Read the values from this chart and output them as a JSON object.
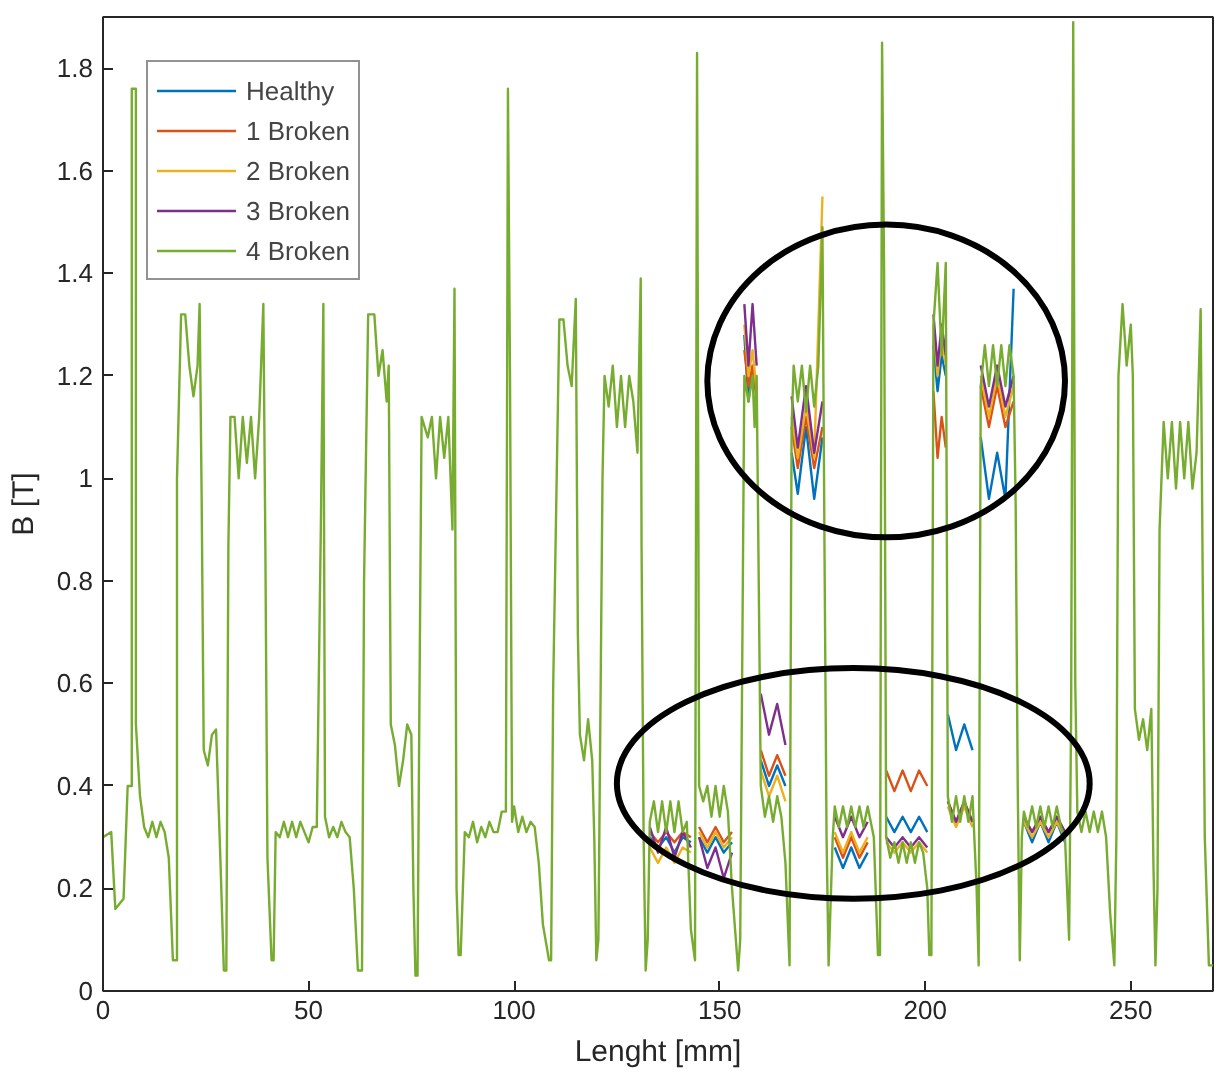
{
  "chart_data": {
    "type": "line",
    "xlabel": "Lenght [mm]",
    "ylabel": "B [T]",
    "xlim": [
      0,
      270
    ],
    "ylim": [
      0,
      1.9
    ],
    "xticks": [
      0,
      50,
      100,
      150,
      200,
      250
    ],
    "yticks": [
      0,
      {
        "value": 0.2,
        "label": "0.2"
      },
      {
        "value": 0.4,
        "label": "0.4"
      },
      {
        "value": 0.6,
        "label": "0.6"
      },
      {
        "value": 0.8,
        "label": "0.8"
      },
      1,
      {
        "value": 1.2,
        "label": "1.2"
      },
      {
        "value": 1.4,
        "label": "1.4"
      },
      {
        "value": 1.6,
        "label": "1.6"
      },
      {
        "value": 1.8,
        "label": "1.8"
      }
    ],
    "grid": false,
    "legend": "top left",
    "series": [
      {
        "name": "Healthy",
        "color": "#0072bd",
        "x": [
          133,
          135,
          137,
          139,
          141,
          143,
          144,
          145,
          147,
          149,
          151,
          153,
          154.5,
          156,
          157,
          158,
          159,
          159.5,
          160,
          162,
          164,
          166,
          166.8,
          167.5,
          169,
          171,
          173,
          175,
          176.5,
          178,
          180,
          182,
          184,
          186,
          188,
          190.5,
          192.5,
          194.5,
          196.5,
          198.5,
          200.5,
          201.2,
          202,
          203,
          204,
          205,
          205.2,
          205.5,
          207.5,
          209.5,
          211.5,
          212.8,
          213.5,
          215.5,
          217.5,
          219.5,
          221.5,
          223,
          224,
          226,
          228,
          230,
          232,
          234
        ],
        "values": [
          0.3,
          0.28,
          0.3,
          0.27,
          0.3,
          0.29,
          null,
          0.3,
          0.27,
          0.3,
          0.27,
          0.29,
          null,
          1.28,
          1.15,
          1.22,
          null,
          null,
          0.45,
          0.4,
          0.44,
          0.4,
          null,
          1.05,
          0.97,
          1.1,
          0.96,
          1.08,
          null,
          0.28,
          0.24,
          0.28,
          0.24,
          0.27,
          null,
          0.34,
          0.31,
          0.34,
          0.31,
          0.34,
          0.31,
          null,
          1.26,
          1.17,
          1.24,
          1.2,
          null,
          0.54,
          0.47,
          0.52,
          0.47,
          null,
          1.08,
          0.96,
          1.05,
          0.96,
          1.37,
          null,
          0.33,
          0.29,
          0.33,
          0.29,
          0.33,
          0.29
        ]
      },
      {
        "name": "1 Broken",
        "color": "#d95319",
        "x": [
          133,
          135,
          137,
          139,
          141,
          143,
          144,
          145,
          147,
          149,
          151,
          153,
          154.5,
          156,
          157,
          158,
          159,
          159.5,
          160,
          162,
          164,
          166,
          166.8,
          167.5,
          169,
          171,
          173,
          175,
          176.5,
          178,
          180,
          182,
          184,
          186,
          188,
          190.5,
          192.5,
          194.5,
          196.5,
          198.5,
          200.5,
          201.2,
          202,
          203,
          204,
          205,
          205.2,
          205.5,
          207.5,
          209.5,
          211.5,
          212.8,
          213.5,
          215.5,
          217.5,
          219.5,
          221.5,
          223,
          224,
          226,
          228,
          230,
          232,
          234
        ],
        "values": [
          0.31,
          0.29,
          0.31,
          0.29,
          0.31,
          0.3,
          null,
          0.32,
          0.29,
          0.32,
          0.29,
          0.31,
          null,
          1.25,
          1.18,
          1.22,
          1.15,
          null,
          0.47,
          0.42,
          0.46,
          0.42,
          null,
          1.1,
          1.02,
          1.12,
          1.02,
          1.1,
          null,
          0.3,
          0.26,
          0.3,
          0.26,
          0.29,
          null,
          0.43,
          0.39,
          0.43,
          0.39,
          0.43,
          0.4,
          null,
          1.17,
          1.04,
          1.12,
          1.06,
          null,
          0.37,
          0.33,
          0.37,
          0.33,
          null,
          1.18,
          1.1,
          1.18,
          1.1,
          1.15,
          null,
          0.34,
          0.31,
          0.34,
          0.31,
          0.34,
          0.31
        ]
      },
      {
        "name": "2 Broken",
        "color": "#edb120",
        "x": [
          133,
          135,
          137,
          139,
          141,
          143,
          144,
          145,
          147,
          149,
          151,
          153,
          154.5,
          156,
          157,
          158,
          159,
          159.5,
          160,
          162,
          164,
          166,
          166.8,
          167.5,
          169,
          171,
          173,
          175,
          176.5,
          178,
          180,
          182,
          184,
          186,
          188,
          190.5,
          192.5,
          194.5,
          196.5,
          198.5,
          200.5,
          201.2,
          202,
          203,
          204,
          205,
          205.2,
          205.5,
          207.5,
          209.5,
          211.5,
          212.8,
          213.5,
          215.5,
          217.5,
          219.5,
          221.5,
          223,
          224,
          226,
          228,
          230,
          232,
          234
        ],
        "values": [
          0.28,
          0.25,
          0.28,
          0.25,
          0.28,
          0.27,
          null,
          0.31,
          0.28,
          0.31,
          0.28,
          0.3,
          null,
          1.3,
          1.2,
          1.25,
          1.17,
          null,
          0.43,
          0.38,
          0.42,
          0.37,
          null,
          1.12,
          1.04,
          1.14,
          1.04,
          1.55,
          null,
          0.31,
          0.27,
          0.31,
          0.27,
          0.3,
          null,
          0.29,
          0.27,
          0.29,
          0.27,
          0.29,
          0.27,
          null,
          1.3,
          1.2,
          1.28,
          1.22,
          null,
          0.36,
          0.32,
          0.36,
          0.32,
          null,
          1.2,
          1.12,
          1.2,
          1.12,
          1.18,
          null,
          0.33,
          0.3,
          0.33,
          0.3,
          0.33,
          0.3
        ]
      },
      {
        "name": "3 Broken",
        "color": "#7e2f8e",
        "x": [
          133,
          135,
          137,
          139,
          141,
          143,
          144,
          145,
          147,
          149,
          151,
          153,
          154.5,
          156,
          157,
          158,
          159,
          159.5,
          160,
          162,
          164,
          166,
          166.8,
          167.5,
          169,
          171,
          173,
          175,
          176.5,
          178,
          180,
          182,
          184,
          186,
          188,
          190.5,
          192.5,
          194.5,
          196.5,
          198.5,
          200.5,
          201.2,
          202,
          203,
          204,
          205,
          205.2,
          205.5,
          207.5,
          209.5,
          211.5,
          212.8,
          213.5,
          215.5,
          217.5,
          219.5,
          221.5,
          223,
          224,
          226,
          228,
          230,
          232,
          234
        ],
        "values": [
          0.32,
          0.27,
          0.32,
          0.26,
          0.31,
          0.28,
          null,
          0.3,
          0.24,
          0.28,
          0.22,
          0.27,
          null,
          1.34,
          1.22,
          1.34,
          1.22,
          null,
          0.58,
          0.5,
          0.56,
          0.48,
          null,
          1.16,
          1.06,
          1.18,
          1.05,
          1.15,
          null,
          0.34,
          0.3,
          0.34,
          0.3,
          0.33,
          null,
          0.3,
          0.28,
          0.3,
          0.28,
          0.3,
          0.28,
          null,
          1.32,
          1.22,
          1.3,
          1.24,
          null,
          0.37,
          0.33,
          0.37,
          0.33,
          null,
          1.22,
          1.14,
          1.22,
          1.14,
          1.2,
          null,
          0.34,
          0.31,
          0.34,
          0.31,
          0.34,
          0.31
        ]
      },
      {
        "name": "4 Broken",
        "color": "#77ac30",
        "x": [
          0,
          2,
          3,
          5,
          6,
          7,
          7,
          8,
          8,
          9,
          10,
          11,
          12,
          13,
          14,
          15,
          16,
          17,
          18,
          18,
          19,
          20,
          21,
          22,
          23,
          23.5,
          24,
          24.5,
          25.5,
          26.5,
          27.5,
          28.5,
          29.4,
          30,
          30.5,
          31,
          32,
          33,
          34,
          35,
          36,
          37,
          38,
          39,
          39.5,
          40,
          41,
          41.5,
          42,
          43,
          44,
          45,
          46,
          47,
          48,
          49,
          50,
          51,
          52,
          53,
          53.6,
          54,
          55,
          56,
          57,
          58,
          59,
          60,
          61,
          62,
          63,
          63.5,
          64.5,
          66,
          67,
          68,
          69,
          69.5,
          70,
          71,
          72,
          73,
          74,
          75,
          75.5,
          76,
          76.5,
          77,
          77.5,
          79,
          80,
          81,
          82,
          83,
          84,
          85,
          85.5,
          86,
          86.5,
          87,
          88,
          89,
          90,
          91,
          92,
          93,
          94,
          95,
          96,
          97,
          98,
          98.5,
          99,
          99.5,
          100,
          101,
          102,
          103,
          104,
          105,
          106,
          107,
          108.5,
          109,
          109.5,
          111,
          112,
          113,
          114,
          115,
          115.5,
          116,
          117,
          118,
          119,
          119.5,
          120,
          120.5,
          121.5,
          122,
          123,
          124,
          125,
          126,
          127,
          128,
          129,
          130,
          130.8,
          131,
          131.5,
          132,
          132.5,
          133,
          134,
          135,
          136,
          137,
          138,
          139,
          140,
          141,
          142,
          143,
          144,
          144.5,
          145,
          146,
          147,
          148,
          149,
          150,
          151,
          152,
          153,
          154.5,
          155,
          156,
          157,
          158,
          158.5,
          159,
          160,
          161,
          162,
          163,
          164,
          165,
          166,
          167,
          167.5,
          168,
          169,
          170,
          171,
          172,
          173,
          174,
          175,
          175.5,
          176,
          176.5,
          177.5,
          178,
          179,
          180,
          181,
          182,
          183,
          184,
          185,
          186,
          187.5,
          188.5,
          189,
          189.5,
          190,
          190.5,
          191.5,
          192.5,
          193.5,
          194.5,
          195.5,
          196.5,
          197.5,
          198.5,
          199.5,
          200.5,
          201,
          201.5,
          202,
          203,
          204,
          205,
          205.5,
          206.5,
          207.5,
          208.5,
          209.5,
          210.5,
          211.5,
          212.5,
          213,
          213.5,
          214.5,
          215.5,
          216.5,
          217.5,
          218.5,
          219.5,
          220.5,
          221.5,
          222,
          222.5,
          223,
          223.5,
          224,
          225,
          226,
          227,
          228,
          229,
          230,
          231,
          232,
          233,
          234,
          235,
          235.5,
          236,
          236.5,
          237,
          238,
          239,
          240,
          241,
          242,
          243,
          244,
          245,
          246,
          246.5,
          247,
          248,
          249,
          250,
          250.5,
          251,
          252,
          253,
          254,
          255,
          255.5,
          256,
          256.5,
          257,
          258,
          259,
          260,
          261,
          262,
          263,
          264,
          265,
          266,
          267,
          267.5,
          268,
          269,
          270
        ],
        "values": [
          0.3,
          0.31,
          0.16,
          0.18,
          0.4,
          0.4,
          1.76,
          1.76,
          0.52,
          0.38,
          0.32,
          0.3,
          0.33,
          0.3,
          0.33,
          0.31,
          0.26,
          0.06,
          0.06,
          1.0,
          1.32,
          1.32,
          1.22,
          1.16,
          1.22,
          1.34,
          0.96,
          0.47,
          0.44,
          0.5,
          0.51,
          0.27,
          0.04,
          0.04,
          0.87,
          1.12,
          1.12,
          1.0,
          1.12,
          1.03,
          1.12,
          1.0,
          1.12,
          1.34,
          0.86,
          0.26,
          0.06,
          0.06,
          0.31,
          0.3,
          0.33,
          0.3,
          0.33,
          0.3,
          0.33,
          0.31,
          0.29,
          0.32,
          0.32,
          0.91,
          1.34,
          0.34,
          0.3,
          0.32,
          0.3,
          0.33,
          0.31,
          0.3,
          0.2,
          0.04,
          0.04,
          0.8,
          1.32,
          1.32,
          1.2,
          1.25,
          1.15,
          1.22,
          0.52,
          0.48,
          0.4,
          0.45,
          0.52,
          0.5,
          0.2,
          0.03,
          0.03,
          0.6,
          1.12,
          1.08,
          1.12,
          1.0,
          1.12,
          1.04,
          1.12,
          0.9,
          1.37,
          0.2,
          0.07,
          0.07,
          0.31,
          0.3,
          0.33,
          0.29,
          0.32,
          0.3,
          0.33,
          0.31,
          0.31,
          0.35,
          0.35,
          1.76,
          1.2,
          0.33,
          0.36,
          0.31,
          0.34,
          0.31,
          0.33,
          0.32,
          0.25,
          0.13,
          0.06,
          0.06,
          0.59,
          1.31,
          1.31,
          1.22,
          1.18,
          1.35,
          0.7,
          0.5,
          0.45,
          0.53,
          0.45,
          0.3,
          0.06,
          0.1,
          1.0,
          1.2,
          1.14,
          1.22,
          1.1,
          1.2,
          1.1,
          1.2,
          1.15,
          1.05,
          1.39,
          0.87,
          0.3,
          0.04,
          0.1,
          0.33,
          0.37,
          0.31,
          0.37,
          0.31,
          0.37,
          0.31,
          0.37,
          0.31,
          0.33,
          0.12,
          0.06,
          1.83,
          0.4,
          0.37,
          0.4,
          0.34,
          0.4,
          0.34,
          0.4,
          0.35,
          0.2,
          0.04,
          0.1,
          1.2,
          1.15,
          1.2,
          1.1,
          1.2,
          0.4,
          0.34,
          0.38,
          0.33,
          0.38,
          0.34,
          0.25,
          0.05,
          1.1,
          1.22,
          1.15,
          1.22,
          1.13,
          1.22,
          1.14,
          1.22,
          1.49,
          0.86,
          0.3,
          0.05,
          0.3,
          0.36,
          0.32,
          0.36,
          0.32,
          0.36,
          0.32,
          0.36,
          0.32,
          0.36,
          0.3,
          0.07,
          0.07,
          1.85,
          1.4,
          0.3,
          0.26,
          0.29,
          0.25,
          0.29,
          0.25,
          0.29,
          0.25,
          0.29,
          0.27,
          0.2,
          0.07,
          0.07,
          1.3,
          1.42,
          1.24,
          1.42,
          0.38,
          0.33,
          0.38,
          0.33,
          0.38,
          0.33,
          0.38,
          0.2,
          0.05,
          1.18,
          1.26,
          1.18,
          1.26,
          1.18,
          1.26,
          1.18,
          1.26,
          1.2,
          0.95,
          0.4,
          0.06,
          0.3,
          0.35,
          0.32,
          0.36,
          0.32,
          0.36,
          0.32,
          0.36,
          0.32,
          0.36,
          0.32,
          0.3,
          0.1,
          0.55,
          1.89,
          0.6,
          0.35,
          0.31,
          0.35,
          0.31,
          0.35,
          0.31,
          0.35,
          0.3,
          0.15,
          0.05,
          0.3,
          1.2,
          1.34,
          1.22,
          1.3,
          1.2,
          0.55,
          0.49,
          0.53,
          0.47,
          0.55,
          0.25,
          0.05,
          0.2,
          0.9,
          1.11,
          1.0,
          1.11,
          0.98,
          1.11,
          1.0,
          1.11,
          0.98,
          1.05,
          1.33,
          0.8,
          0.3,
          0.05,
          0.05
        ]
      }
    ]
  }
}
